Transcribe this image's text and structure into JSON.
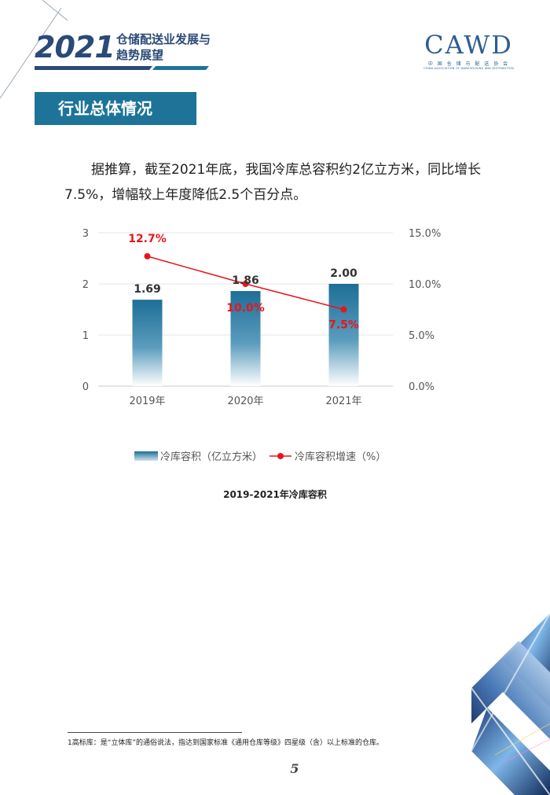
{
  "header": {
    "year": "2021",
    "title_line1": "仓储配送业发展与",
    "title_line2": "趋势展望",
    "logo_text": "CAWD",
    "logo_cn": "中 国 仓 储 与 配 送 协 会",
    "logo_en": "CHINA ASSOCIATION OF WAREHOUSING AND DISTRIBUTION"
  },
  "section": {
    "heading": "行业总体情况"
  },
  "body": {
    "paragraph": "据推算，截至2021年底，我国冷库总容积约2亿立方米，同比增长7.5%，增幅较上年度降低2.5个百分点。"
  },
  "chart_data": {
    "type": "bar",
    "categories": [
      "2019年",
      "2020年",
      "2021年"
    ],
    "series": [
      {
        "name": "冷库容积（亿立方米）",
        "type": "bar",
        "axis": "left",
        "values": [
          1.69,
          1.86,
          2.0
        ],
        "labels": [
          "1.69",
          "1.86",
          "2.00"
        ],
        "color": "#1d6e97"
      },
      {
        "name": "冷库容积增速（%）",
        "type": "line",
        "axis": "right",
        "values": [
          12.7,
          10.0,
          7.5
        ],
        "labels": [
          "12.7%",
          "10.0%",
          "7.5%"
        ],
        "color": "#e8151b"
      }
    ],
    "y_left": {
      "ylim": [
        0,
        3
      ],
      "ticks": [
        "0",
        "1",
        "2",
        "3"
      ]
    },
    "y_right": {
      "ylim": [
        0,
        15
      ],
      "ticks": [
        "0.0%",
        "5.0%",
        "10.0%",
        "15.0%"
      ]
    },
    "title": "2019-2021年冷库容积",
    "grid": true,
    "legend_position": "bottom"
  },
  "footnote": "1高标库：是“立体库”的通俗说法，指达到国家标准《通用仓库等级》四星级（含）以上标准的仓库。",
  "page_number": "5"
}
